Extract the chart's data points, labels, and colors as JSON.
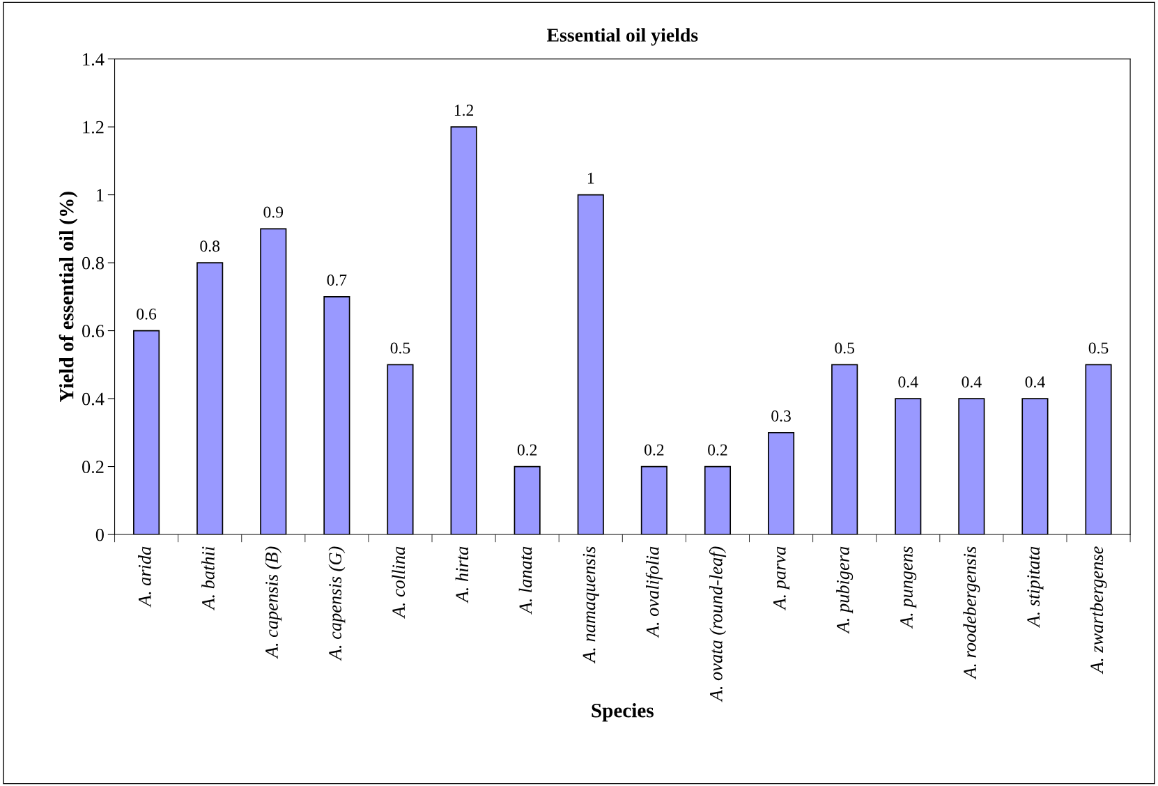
{
  "chart_data": {
    "type": "bar",
    "title": "Essential oil yields",
    "xlabel": "Species",
    "ylabel": "Yield of essential oil (%)",
    "categories": [
      "A. arida",
      "A. bathii",
      "A. capensis (B)",
      "A. capensis (G)",
      "A. collina",
      "A. hirta",
      "A. lanata",
      "A. namaquensis",
      "A. ovalifolia",
      "A. ovata (round-leaf)",
      "A. parva",
      "A. pubigera",
      "A. pungens",
      "A. roodebergensis",
      "A. stipitata",
      "A. zwartbergense"
    ],
    "values": [
      0.6,
      0.8,
      0.9,
      0.7,
      0.5,
      1.2,
      0.2,
      1,
      0.2,
      0.2,
      0.3,
      0.5,
      0.4,
      0.4,
      0.4,
      0.5
    ],
    "color": "#9999ff",
    "ylim": [
      0,
      1.4
    ],
    "yticks": [
      0,
      0.2,
      0.4,
      0.6,
      0.8,
      1,
      1.2,
      1.4
    ],
    "data_labels": true,
    "grid": false,
    "legend": false
  }
}
